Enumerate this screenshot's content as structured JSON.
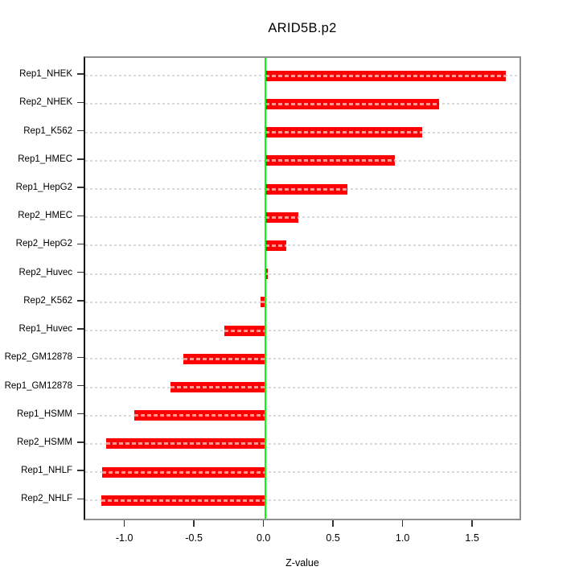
{
  "chart_data": {
    "type": "bar",
    "orientation": "horizontal",
    "title": "ARID5B.p2",
    "xlabel": "Z-value",
    "ylabel": "",
    "categories": [
      "Rep1_NHEK",
      "Rep2_NHEK",
      "Rep1_K562",
      "Rep1_HMEC",
      "Rep1_HepG2",
      "Rep2_HMEC",
      "Rep2_HepG2",
      "Rep2_Huvec",
      "Rep2_K562",
      "Rep1_Huvec",
      "Rep2_GM12878",
      "Rep1_GM12878",
      "Rep1_HSMM",
      "Rep2_HSMM",
      "Rep1_NHLF",
      "Rep2_NHLF"
    ],
    "values": [
      1.73,
      1.25,
      1.13,
      0.93,
      0.59,
      0.24,
      0.15,
      0.02,
      -0.03,
      -0.29,
      -0.59,
      -0.68,
      -0.94,
      -1.14,
      -1.17,
      -1.18
    ],
    "xlim": [
      -1.293,
      1.852
    ],
    "xticks": [
      -1.0,
      -0.5,
      0.0,
      0.5,
      1.0,
      1.5
    ],
    "xtick_labels": [
      "-1.0",
      "-0.5",
      "0.0",
      "0.5",
      "1.0",
      "1.5"
    ],
    "grid": true,
    "zero_reference_line": 0,
    "legend": null,
    "colors": {
      "bar": "#ff0000",
      "bar_dash": "#ff9494",
      "zero_line": "#00ff00",
      "gridline": "#d9d9d9",
      "border": "#8f8f8f",
      "axis_line": "#141414",
      "text": "#000000",
      "background": "#ffffff"
    }
  }
}
